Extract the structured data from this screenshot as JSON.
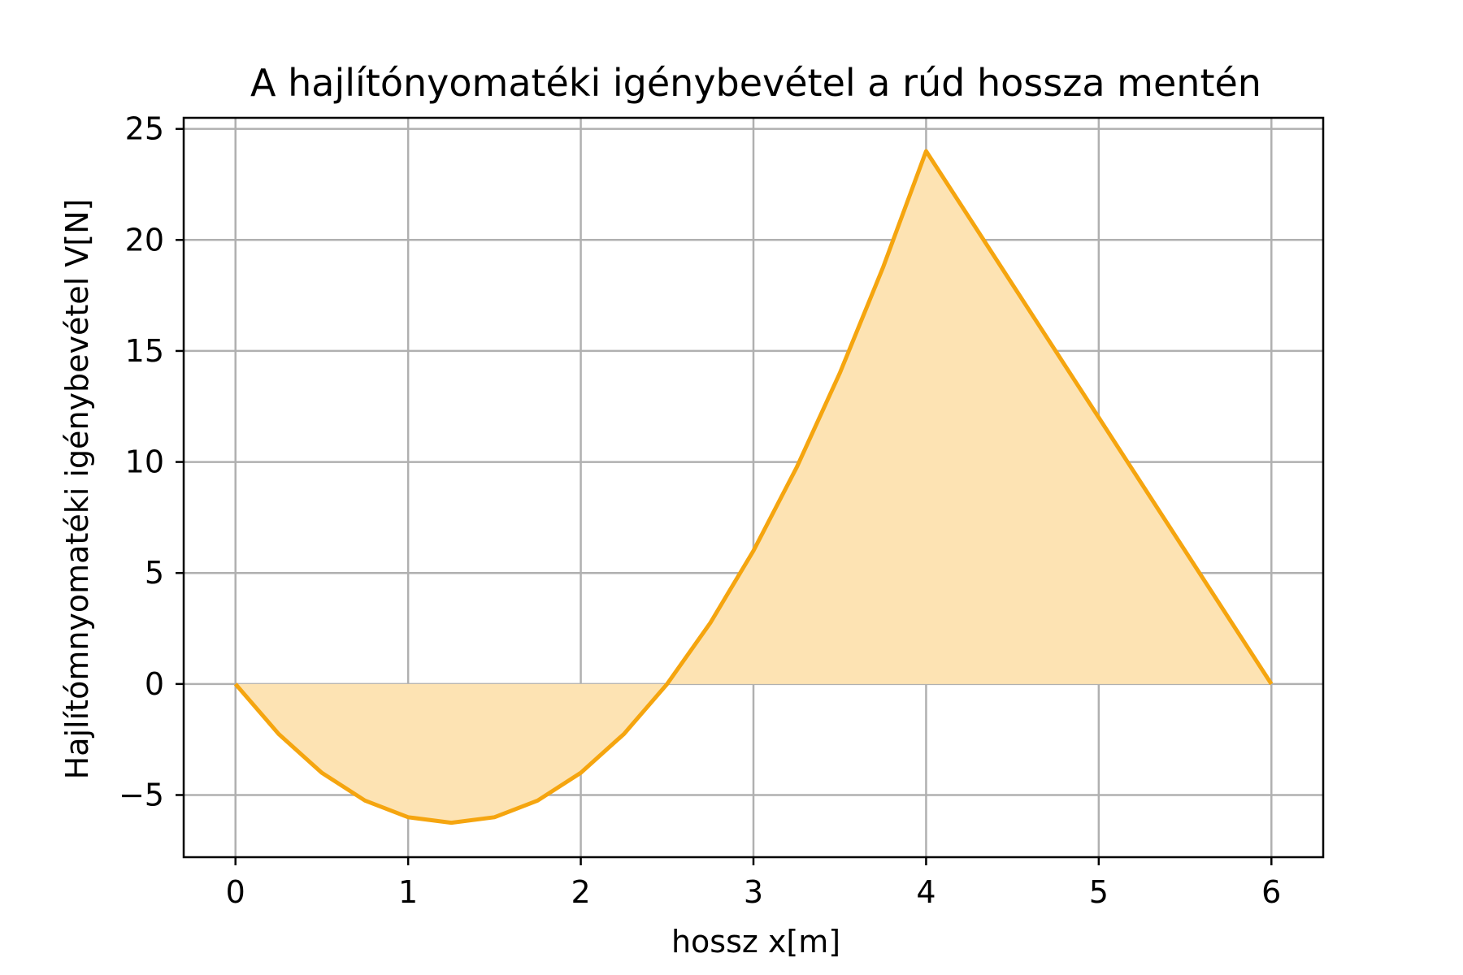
{
  "chart_data": {
    "type": "area",
    "title": "A hajlítónyomatéki igénybevétel a rúd hossza mentén",
    "xlabel": "hossz x[m]",
    "ylabel": "Hajlítómnyomatéki igénybevétel V[N]",
    "xlim": [
      -0.3,
      6.3
    ],
    "ylim": [
      -7.8,
      25.5
    ],
    "xticks": [
      0,
      1,
      2,
      3,
      4,
      5,
      6
    ],
    "xtick_labels": [
      "0",
      "1",
      "2",
      "3",
      "4",
      "5",
      "6"
    ],
    "yticks": [
      -5,
      0,
      5,
      10,
      15,
      20,
      25
    ],
    "ytick_labels": [
      "−5",
      "0",
      "5",
      "10",
      "15",
      "20",
      "25"
    ],
    "grid": true,
    "series": [
      {
        "color": "#f5a50f",
        "fill_color": "#fde3b3",
        "x": [
          0,
          0.25,
          0.5,
          0.75,
          1.0,
          1.25,
          1.5,
          1.75,
          2.0,
          2.25,
          2.5,
          2.75,
          3.0,
          3.25,
          3.5,
          3.75,
          4.0,
          4.5,
          5.0,
          5.5,
          6.0
        ],
        "y": [
          0,
          -2.25,
          -4.0,
          -5.25,
          -6.0,
          -6.25,
          -6.0,
          -5.25,
          -4.0,
          -2.25,
          0,
          2.75,
          6.0,
          9.75,
          14.0,
          18.75,
          24.0,
          18.0,
          12.0,
          6.0,
          0
        ]
      }
    ]
  }
}
